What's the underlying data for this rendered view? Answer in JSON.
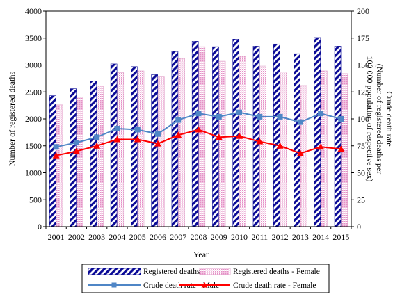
{
  "chart_data": {
    "type": "bar",
    "categories": [
      "2001",
      "2002",
      "2003",
      "2004",
      "2005",
      "2006",
      "2007",
      "2008",
      "2009",
      "2010",
      "2011",
      "2012",
      "2013",
      "2014",
      "2015"
    ],
    "bar_series": [
      {
        "name": "Registered deaths - Male",
        "values": [
          2430,
          2560,
          2700,
          3020,
          2970,
          2820,
          3250,
          3440,
          3340,
          3480,
          3350,
          3390,
          3210,
          3510,
          3350
        ],
        "color": "#0a0a96",
        "pattern": "diagonal-hatch"
      },
      {
        "name": "Registered deaths - Female",
        "values": [
          2260,
          2400,
          2610,
          2860,
          2890,
          2780,
          3120,
          3340,
          3070,
          3160,
          2980,
          2870,
          2620,
          2890,
          2840
        ],
        "color": "#e8a6d0",
        "pattern": "dotted"
      }
    ],
    "line_series": [
      {
        "name": "Crude death rate - Male",
        "values": [
          74,
          78,
          83,
          91,
          90,
          86,
          99,
          105,
          102,
          106,
          102,
          102,
          97,
          105,
          100
        ],
        "color": "#4f86c6",
        "marker": "square"
      },
      {
        "name": "Crude death rate - Female",
        "values": [
          66,
          70,
          75,
          81,
          81,
          77,
          85,
          90,
          83,
          84,
          79,
          75,
          68,
          74,
          72
        ],
        "color": "#ff0000",
        "marker": "triangle"
      }
    ],
    "xlabel": "Year",
    "ylabel": "Number of registered deaths",
    "y2label_line1": "Crude death rate",
    "y2label_line2": "(Number of registered deaths per",
    "y2label_line3": "100 000 population of respective sex)",
    "ylim": [
      0,
      4000
    ],
    "y2lim": [
      0,
      200
    ],
    "yticks": [
      "0",
      "500",
      "1000",
      "1500",
      "2000",
      "2500",
      "3000",
      "3500",
      "4000"
    ],
    "y2ticks": [
      "0",
      "25",
      "50",
      "75",
      "100",
      "125",
      "150",
      "175",
      "200"
    ],
    "grid": false,
    "legend_position": "bottom"
  }
}
